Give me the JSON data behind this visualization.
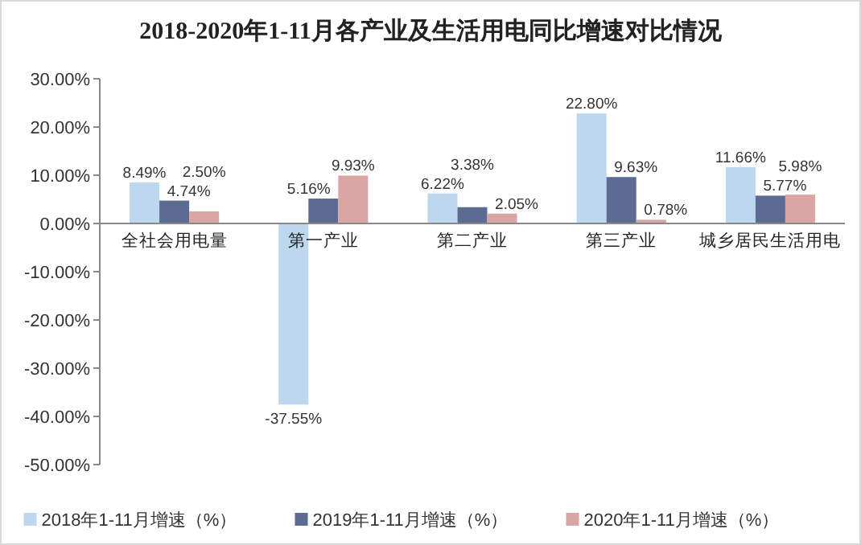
{
  "chart_data": {
    "type": "bar",
    "title": "2018-2020年1-11月各产业及生活用电同比增速对比情况",
    "categories": [
      "全社会用电量",
      "第一产业",
      "第二产业",
      "第三产业",
      "城乡居民生活用电"
    ],
    "series": [
      {
        "name": "2018年1-11月增速（%）",
        "color": "#bdd7ee",
        "values": [
          8.49,
          -37.55,
          6.22,
          22.8,
          11.66
        ],
        "value_labels": [
          "8.49%",
          "-37.55%",
          "6.22%",
          "22.80%",
          "11.66%"
        ]
      },
      {
        "name": "2019年1-11月增速（%）",
        "color": "#5b6b92",
        "values": [
          4.74,
          5.16,
          3.38,
          9.63,
          5.77
        ],
        "value_labels": [
          "4.74%",
          "5.16%",
          "3.38%",
          "9.63%",
          "5.77%"
        ]
      },
      {
        "name": "2020年1-11月增速（%）",
        "color": "#d9a5a5",
        "values": [
          2.5,
          9.93,
          2.05,
          0.78,
          5.98
        ],
        "value_labels": [
          "2.50%",
          "9.93%",
          "2.05%",
          "0.78%",
          "5.98%"
        ]
      }
    ],
    "ylim": [
      -50,
      30
    ],
    "yticks": [
      {
        "value": 30,
        "label": "30.00%"
      },
      {
        "value": 20,
        "label": "20.00%"
      },
      {
        "value": 10,
        "label": "10.00%"
      },
      {
        "value": 0,
        "label": "0.00%"
      },
      {
        "value": -10,
        "label": "-10.00%"
      },
      {
        "value": -20,
        "label": "-20.00%"
      },
      {
        "value": -30,
        "label": "-30.00%"
      },
      {
        "value": -40,
        "label": "-40.00%"
      },
      {
        "value": -50,
        "label": "-50.00%"
      }
    ],
    "legend": "bottom"
  }
}
